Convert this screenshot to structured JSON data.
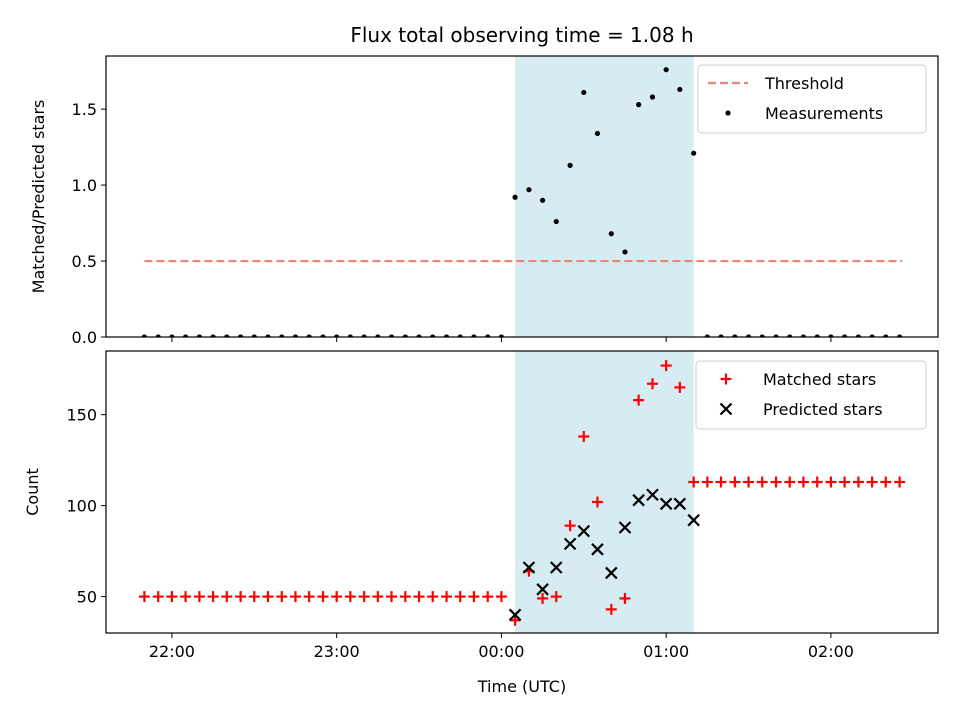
{
  "chart_data": {
    "type": "scatter",
    "title": "Flux total observing time = 1.08 h",
    "xlabel": "Time (UTC)",
    "xlim": [
      -2.4,
      2.65
    ],
    "xticks": [
      {
        "value": -2,
        "label": "22:00"
      },
      {
        "value": -1,
        "label": "23:00"
      },
      {
        "value": 0,
        "label": "00:00"
      },
      {
        "value": 1,
        "label": "01:00"
      },
      {
        "value": 2,
        "label": "02:00"
      }
    ],
    "highlight_span": {
      "x0": 0.083,
      "x1": 1.167,
      "color": "#add8e6"
    },
    "panels": [
      {
        "ylabel": "Matched/Predicted stars",
        "ylim": [
          0,
          1.85
        ],
        "yticks": [
          {
            "value": 0,
            "label": "0.0"
          },
          {
            "value": 0.5,
            "label": "0.5"
          },
          {
            "value": 1.0,
            "label": "1.0"
          },
          {
            "value": 1.5,
            "label": "1.5"
          }
        ],
        "legend": {
          "placement": "top-right"
        },
        "series": [
          {
            "name": "Threshold",
            "kind": "dashed-line",
            "color": "#f08080",
            "x": [
              -2.167,
              2.433
            ],
            "y": [
              0.5,
              0.5
            ]
          },
          {
            "name": "Measurements",
            "kind": "dot",
            "color": "#000000",
            "x": [
              -2.167,
              -2.083,
              -2.0,
              -1.917,
              -1.833,
              -1.75,
              -1.667,
              -1.583,
              -1.5,
              -1.417,
              -1.333,
              -1.25,
              -1.167,
              -1.083,
              -1.0,
              -0.917,
              -0.833,
              -0.75,
              -0.667,
              -0.583,
              -0.5,
              -0.417,
              -0.333,
              -0.25,
              -0.167,
              -0.083,
              0.0,
              0.083,
              0.167,
              0.25,
              0.333,
              0.417,
              0.5,
              0.583,
              0.667,
              0.75,
              0.833,
              0.917,
              1.0,
              1.083,
              1.167,
              1.25,
              1.333,
              1.417,
              1.5,
              1.583,
              1.667,
              1.75,
              1.833,
              1.917,
              2.0,
              2.083,
              2.167,
              2.25,
              2.333,
              2.417
            ],
            "y": [
              0,
              0,
              0,
              0,
              0,
              0,
              0,
              0,
              0,
              0,
              0,
              0,
              0,
              0,
              0,
              0,
              0,
              0,
              0,
              0,
              0,
              0,
              0,
              0,
              0,
              0,
              0,
              0.92,
              0.97,
              0.9,
              0.76,
              1.13,
              1.61,
              1.34,
              0.68,
              0.56,
              1.53,
              1.58,
              1.76,
              1.63,
              1.21,
              0,
              0,
              0,
              0,
              0,
              0,
              0,
              0,
              0,
              0,
              0,
              0,
              0,
              0,
              0
            ]
          }
        ]
      },
      {
        "ylabel": "Count",
        "ylim": [
          30,
          185
        ],
        "yticks": [
          {
            "value": 50,
            "label": "50"
          },
          {
            "value": 100,
            "label": "100"
          },
          {
            "value": 150,
            "label": "150"
          }
        ],
        "legend": {
          "placement": "top-right"
        },
        "series": [
          {
            "name": "Matched stars",
            "kind": "plus",
            "color": "#ff0000",
            "x": [
              -2.167,
              -2.083,
              -2.0,
              -1.917,
              -1.833,
              -1.75,
              -1.667,
              -1.583,
              -1.5,
              -1.417,
              -1.333,
              -1.25,
              -1.167,
              -1.083,
              -1.0,
              -0.917,
              -0.833,
              -0.75,
              -0.667,
              -0.583,
              -0.5,
              -0.417,
              -0.333,
              -0.25,
              -0.167,
              -0.083,
              0.0,
              0.083,
              0.167,
              0.25,
              0.333,
              0.417,
              0.5,
              0.583,
              0.667,
              0.75,
              0.833,
              0.917,
              1.0,
              1.083,
              1.167,
              1.25,
              1.333,
              1.417,
              1.5,
              1.583,
              1.667,
              1.75,
              1.833,
              1.917,
              2.0,
              2.083,
              2.167,
              2.25,
              2.333,
              2.417
            ],
            "y": [
              50,
              50,
              50,
              50,
              50,
              50,
              50,
              50,
              50,
              50,
              50,
              50,
              50,
              50,
              50,
              50,
              50,
              50,
              50,
              50,
              50,
              50,
              50,
              50,
              50,
              50,
              50,
              37,
              64,
              49,
              50,
              89,
              138,
              102,
              43,
              49,
              158,
              167,
              177,
              165,
              113,
              113,
              113,
              113,
              113,
              113,
              113,
              113,
              113,
              113,
              113,
              113,
              113,
              113,
              113,
              113
            ]
          },
          {
            "name": "Predicted stars",
            "kind": "x",
            "color": "#000000",
            "x": [
              0.083,
              0.167,
              0.25,
              0.333,
              0.417,
              0.5,
              0.583,
              0.667,
              0.75,
              0.833,
              0.917,
              1.0,
              1.083,
              1.167
            ],
            "y": [
              40,
              66,
              54,
              66,
              79,
              86,
              76,
              63,
              88,
              103,
              106,
              101,
              101,
              92
            ]
          }
        ]
      }
    ]
  }
}
